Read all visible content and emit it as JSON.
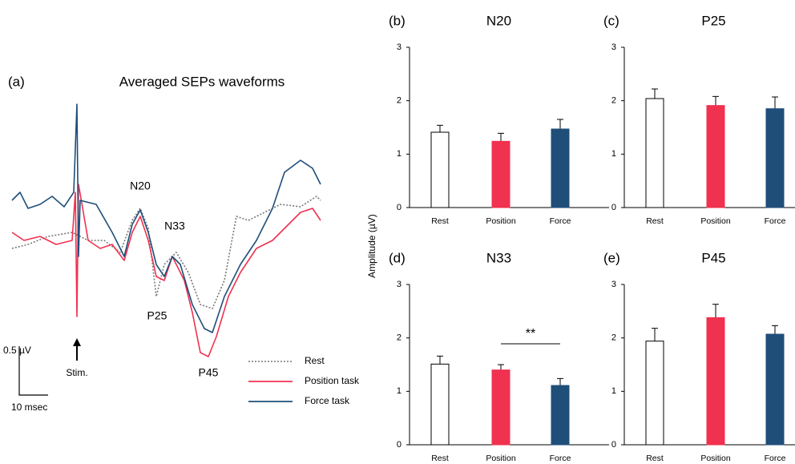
{
  "figure": {
    "panel_a": {
      "label": "(a)",
      "title": "Averaged SEPs waveforms",
      "peaks": [
        "N20",
        "N33",
        "P25",
        "P45"
      ],
      "stim": "Stim.",
      "scale_v": "0.5 µV",
      "scale_t": "10 msec",
      "legend": [
        "Rest",
        "Position task",
        "Force task"
      ]
    },
    "ylabel": "Amplitude (µV)"
  },
  "chart_data": [
    {
      "type": "bar",
      "panel": "(b)",
      "title": "N20",
      "categories": [
        "Rest",
        "Position",
        "Force"
      ],
      "values": [
        1.41,
        1.24,
        1.47
      ],
      "errors": [
        0.13,
        0.15,
        0.18
      ],
      "colors": [
        "#ffffff",
        "#f0314f",
        "#1f4e79"
      ],
      "ylim": [
        0,
        3
      ],
      "yticks": [
        0,
        1,
        2,
        3
      ]
    },
    {
      "type": "bar",
      "panel": "(c)",
      "title": "P25",
      "categories": [
        "Rest",
        "Position",
        "Force"
      ],
      "values": [
        2.04,
        1.91,
        1.85
      ],
      "errors": [
        0.18,
        0.17,
        0.22
      ],
      "colors": [
        "#ffffff",
        "#f0314f",
        "#1f4e79"
      ],
      "ylim": [
        0,
        3
      ],
      "yticks": [
        0,
        1,
        2,
        3
      ]
    },
    {
      "type": "bar",
      "panel": "(d)",
      "title": "N33",
      "categories": [
        "Rest",
        "Position",
        "Force"
      ],
      "values": [
        1.51,
        1.4,
        1.11
      ],
      "errors": [
        0.15,
        0.1,
        0.13
      ],
      "colors": [
        "#ffffff",
        "#f0314f",
        "#1f4e79"
      ],
      "ylim": [
        0,
        3
      ],
      "yticks": [
        0,
        1,
        2,
        3
      ],
      "significance": "**"
    },
    {
      "type": "bar",
      "panel": "(e)",
      "title": "P45",
      "categories": [
        "Rest",
        "Position",
        "Force"
      ],
      "values": [
        1.94,
        2.38,
        2.07
      ],
      "errors": [
        0.24,
        0.25,
        0.16
      ],
      "colors": [
        "#ffffff",
        "#f0314f",
        "#1f4e79"
      ],
      "ylim": [
        0,
        3
      ],
      "yticks": [
        0,
        1,
        2,
        3
      ]
    }
  ]
}
